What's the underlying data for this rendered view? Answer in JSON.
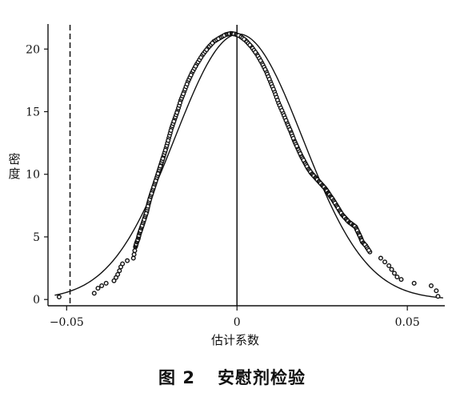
{
  "chart_data": {
    "type": "scatter",
    "caption": {
      "number": "图 2",
      "title": "安慰剂检验"
    },
    "xlabel": "估计系数",
    "ylabel": "密度",
    "xlim": [
      -0.055,
      0.061
    ],
    "ylim": [
      -0.5,
      22
    ],
    "xticks": [
      -0.05,
      0,
      0.05
    ],
    "xtick_labels": [
      "−0.05",
      "0",
      "0.05"
    ],
    "yticks": [
      0,
      5,
      10,
      15,
      20
    ],
    "ytick_labels": [
      "0",
      "5",
      "10",
      "15",
      "20"
    ],
    "reference_lines": [
      {
        "x": -0.049,
        "style": "dashed"
      },
      {
        "x": 0.0,
        "style": "solid"
      }
    ],
    "series": [
      {
        "kind": "kernel-density-points",
        "points": [
          [
            -0.0522,
            0.2
          ],
          [
            -0.0419,
            0.5
          ],
          [
            -0.0408,
            0.9
          ],
          [
            -0.0397,
            1.1
          ],
          [
            -0.0384,
            1.3
          ],
          [
            -0.0361,
            1.5
          ],
          [
            -0.0355,
            1.75
          ],
          [
            -0.035,
            2.0
          ],
          [
            -0.0345,
            2.3
          ],
          [
            -0.0341,
            2.6
          ],
          [
            -0.0336,
            2.85
          ],
          [
            -0.0322,
            3.1
          ],
          [
            -0.0304,
            3.3
          ],
          [
            -0.0302,
            3.6
          ],
          [
            -0.03,
            3.9
          ],
          [
            -0.0298,
            4.2
          ],
          [
            -0.0295,
            4.5
          ],
          [
            -0.029,
            4.85
          ],
          [
            -0.0287,
            5.2
          ],
          [
            -0.0282,
            5.6
          ],
          [
            -0.0277,
            6.0
          ],
          [
            -0.0271,
            6.5
          ],
          [
            -0.0265,
            7.0
          ],
          [
            -0.026,
            7.6
          ],
          [
            -0.0255,
            8.1
          ],
          [
            -0.0249,
            8.6
          ],
          [
            -0.0243,
            9.1
          ],
          [
            -0.0237,
            9.6
          ],
          [
            -0.023,
            10.2
          ],
          [
            -0.0223,
            10.8
          ],
          [
            -0.0216,
            11.4
          ],
          [
            -0.0208,
            12.1
          ],
          [
            -0.02,
            12.9
          ],
          [
            -0.0192,
            13.7
          ],
          [
            -0.0183,
            14.4
          ],
          [
            -0.0174,
            15.1
          ],
          [
            -0.0165,
            15.9
          ],
          [
            -0.0155,
            16.6
          ],
          [
            -0.0144,
            17.4
          ],
          [
            -0.0132,
            18.1
          ],
          [
            -0.0118,
            18.8
          ],
          [
            -0.0102,
            19.5
          ],
          [
            -0.0085,
            20.1
          ],
          [
            -0.0068,
            20.6
          ],
          [
            -0.005,
            20.9
          ],
          [
            -0.0033,
            21.15
          ],
          [
            -0.0018,
            21.25
          ],
          [
            -0.0006,
            21.2
          ],
          [
            0.0008,
            21.05
          ],
          [
            0.0025,
            20.7
          ],
          [
            0.0042,
            20.2
          ],
          [
            0.0058,
            19.6
          ],
          [
            0.0073,
            18.9
          ],
          [
            0.0086,
            18.2
          ],
          [
            0.0098,
            17.4
          ],
          [
            0.011,
            16.6
          ],
          [
            0.0122,
            15.7
          ],
          [
            0.0135,
            14.9
          ],
          [
            0.0147,
            14.1
          ],
          [
            0.0158,
            13.4
          ],
          [
            0.0168,
            12.7
          ],
          [
            0.0178,
            12.1
          ],
          [
            0.0188,
            11.5
          ],
          [
            0.0198,
            11.0
          ],
          [
            0.0208,
            10.5
          ],
          [
            0.0218,
            10.1
          ],
          [
            0.0228,
            9.8
          ],
          [
            0.0238,
            9.5
          ],
          [
            0.0248,
            9.2
          ],
          [
            0.0258,
            8.9
          ],
          [
            0.0266,
            8.6
          ],
          [
            0.0273,
            8.3
          ],
          [
            0.0281,
            8.0
          ],
          [
            0.029,
            7.6
          ],
          [
            0.0299,
            7.2
          ],
          [
            0.0308,
            6.8
          ],
          [
            0.0318,
            6.5
          ],
          [
            0.0328,
            6.2
          ],
          [
            0.0338,
            6.0
          ],
          [
            0.0348,
            5.8
          ],
          [
            0.0355,
            5.4
          ],
          [
            0.0362,
            5.0
          ],
          [
            0.0368,
            4.6
          ],
          [
            0.0378,
            4.3
          ],
          [
            0.039,
            3.8
          ],
          [
            0.0422,
            3.3
          ],
          [
            0.0434,
            3.0
          ],
          [
            0.0446,
            2.7
          ],
          [
            0.0454,
            2.4
          ],
          [
            0.0462,
            2.1
          ],
          [
            0.047,
            1.8
          ],
          [
            0.0482,
            1.6
          ],
          [
            0.052,
            1.3
          ],
          [
            0.057,
            1.1
          ],
          [
            0.0585,
            0.7
          ],
          [
            0.059,
            0.25
          ]
        ]
      },
      {
        "kind": "normal-density-curve",
        "mean": 0.0005,
        "sd": 0.0188,
        "peak": 21.2
      }
    ]
  }
}
